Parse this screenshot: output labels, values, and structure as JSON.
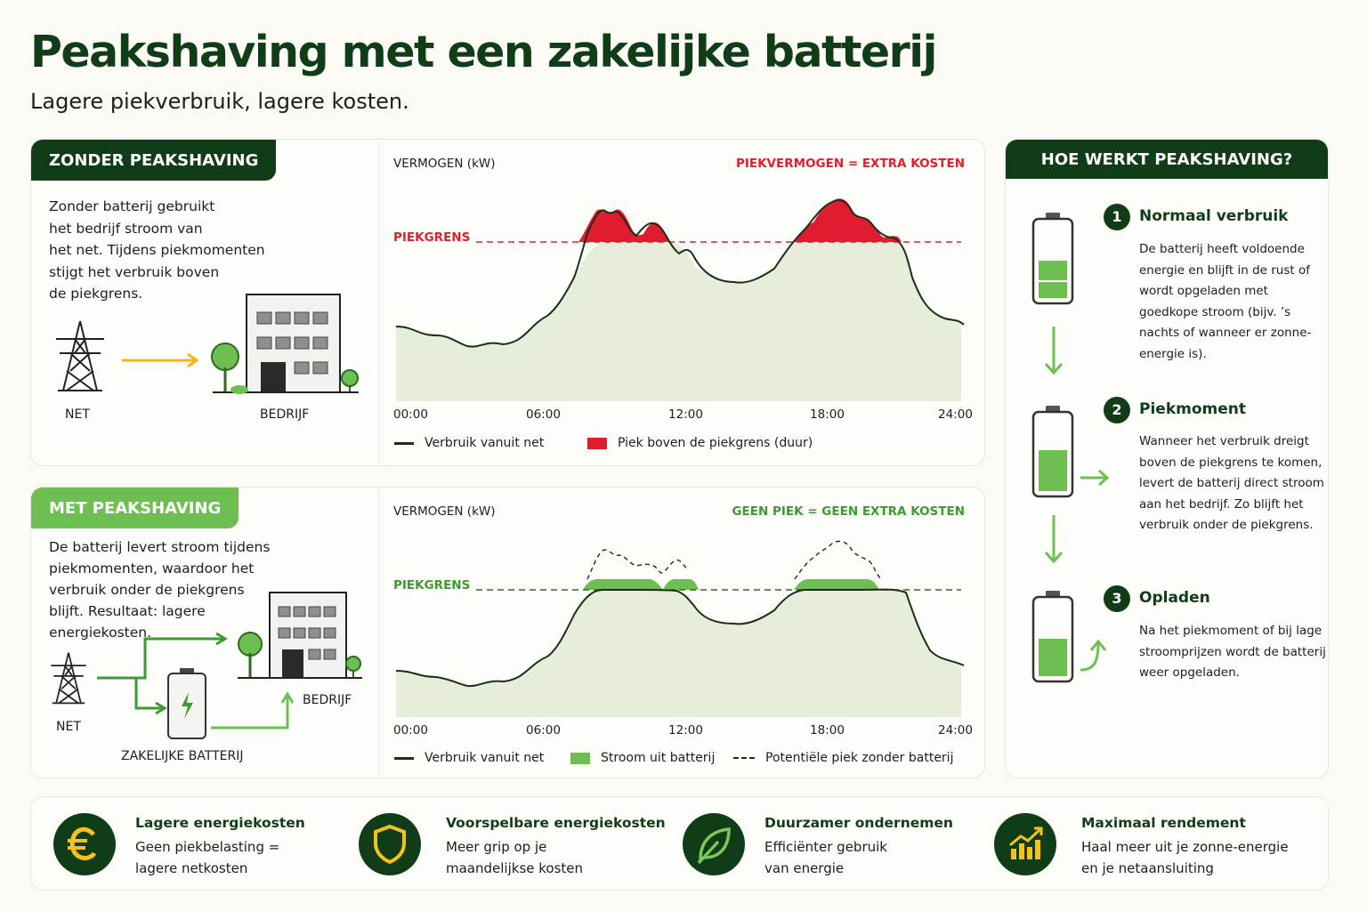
{
  "title": "Peakshaving met een zakelijke batterij",
  "subtitle": "Lagere piekverbruik, lagere kosten.",
  "colors": {
    "dark_green": "#103d18",
    "light_green": "#6ebf52",
    "peak_red": "#e02030",
    "area_fill": "#e6eedb"
  },
  "without": {
    "tag": "ZONDER PEAKSHAVING",
    "description": [
      "Zonder batterij gebruikt",
      "het bedrijf stroom van",
      "het net. Tijdens piekmomenten",
      "stijgt het verbruik boven",
      "de piekgrens."
    ],
    "net_label": "NET",
    "company_label": "BEDRIJF",
    "axis_title": "VERMOGEN (kW)",
    "cost_label": "PIEKVERMOGEN = EXTRA KOSTEN",
    "limit_label": "PIEKGRENS",
    "ticks": [
      "00:00",
      "06:00",
      "12:00",
      "18:00",
      "24:00"
    ],
    "legend": [
      "Verbruik vanuit net",
      "Piek boven de piekgrens (duur)"
    ]
  },
  "with": {
    "tag": "MET PEAKSHAVING",
    "description": [
      "De batterij levert stroom tijdens",
      "piekmomenten, waardoor het",
      "verbruik onder de piekgrens",
      "blijft. Resultaat: lagere",
      "energiekosten."
    ],
    "net_label": "NET",
    "company_label": "BEDRIJF",
    "battery_label": "ZAKELIJKE BATTERIJ",
    "axis_title": "VERMOGEN (kW)",
    "cost_label": "GEEN PIEK = GEEN EXTRA KOSTEN",
    "limit_label": "PIEKGRENS",
    "ticks": [
      "00:00",
      "06:00",
      "12:00",
      "18:00",
      "24:00"
    ],
    "legend": [
      "Verbruik vanuit net",
      "Stroom uit batterij",
      "Potentiële piek zonder batterij"
    ]
  },
  "how": {
    "title": "HOE WERKT PEAKSHAVING?",
    "steps": [
      {
        "num": "1",
        "title": "Normaal verbruik",
        "text": "De batterij heeft voldoende energie en blijft in de rust of wordt opgeladen met goedkope stroom (bijv. ’s nachts of wanneer er zonne-energie is).",
        "icon": "battery-half-icon"
      },
      {
        "num": "2",
        "title": "Piekmoment",
        "text": "Wanneer het verbruik dreigt boven de piekgrens te komen, levert de batterij direct stroom aan het bedrijf. Zo blijft het verbruik onder de piekgrens.",
        "icon": "battery-discharging-icon"
      },
      {
        "num": "3",
        "title": "Opladen",
        "text": "Na het piekmoment of bij lage stroomprijzen wordt de batterij weer opgeladen.",
        "icon": "battery-charging-icon"
      }
    ]
  },
  "benefits": [
    {
      "title": "Lagere energiekosten",
      "text": [
        "Geen piekbelasting =",
        "lagere netkosten"
      ],
      "icon": "euro-icon"
    },
    {
      "title": "Voorspelbare energiekosten",
      "text": [
        "Meer grip op je",
        "maandelijkse kosten"
      ],
      "icon": "shield-icon"
    },
    {
      "title": "Duurzamer ondernemen",
      "text": [
        "Efficiënter gebruik",
        "van energie"
      ],
      "icon": "leaf-icon"
    },
    {
      "title": "Maximaal rendement",
      "text": [
        "Haal meer uit je zonne-energie",
        "en je netaansluiting"
      ],
      "icon": "chart-growth-icon"
    }
  ]
}
